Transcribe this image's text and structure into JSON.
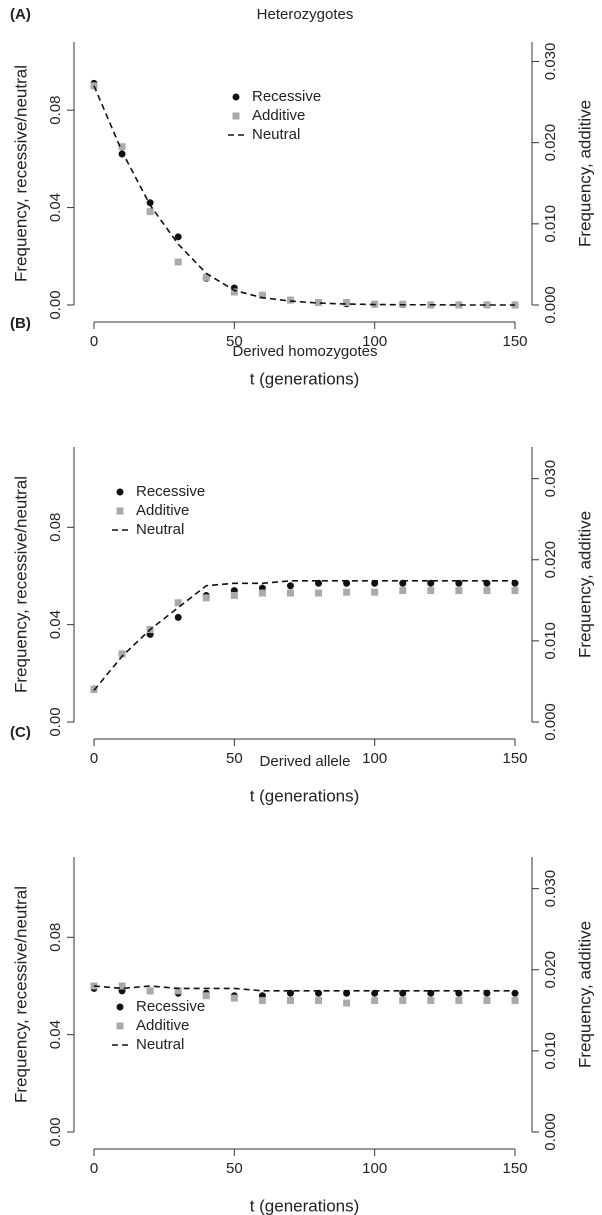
{
  "chart_data": [
    {
      "type": "line",
      "panel": "(A)",
      "title": "Heterozygotes",
      "xlabel": "t (generations)",
      "ylabel": "Frequency, recessive/neutral",
      "y2label": "Frequency, additive",
      "x": [
        0,
        10,
        20,
        30,
        40,
        50,
        60,
        70,
        80,
        90,
        100,
        110,
        120,
        130,
        140,
        150
      ],
      "xlim": [
        0,
        150
      ],
      "xticks": [
        0,
        50,
        100,
        150
      ],
      "ylim": [
        0,
        0.108
      ],
      "yticks": [
        {
          "value": 0,
          "label": "0.00"
        },
        0.04,
        0.08
      ],
      "y2lim": [
        0,
        0.0324
      ],
      "y2ticks": [
        {
          "value": 0,
          "label": "0.000"
        },
        {
          "value": 0.01,
          "label": "0.010"
        },
        {
          "value": 0.02,
          "label": "0.020"
        },
        {
          "value": 0.03,
          "label": "0.030"
        }
      ],
      "legend": "top",
      "series": [
        {
          "name": "Recessive",
          "color": "#111111",
          "marker": "circle",
          "values": [
            0.091,
            0.062,
            0.042,
            0.028,
            0.011,
            0.007,
            0.004,
            0.002,
            0.001,
            0.0005,
            0.0003,
            0.0002,
            0.0001,
            0.0001,
            0.0001,
            0.0001
          ]
        },
        {
          "name": "Additive",
          "color": "#aaaaaa",
          "marker": "square",
          "axis": "y2",
          "values": [
            0.027,
            0.0195,
            0.0115,
            0.0053,
            0.0034,
            0.0016,
            0.0012,
            0.0006,
            0.0003,
            0.0003,
            0.0001,
            0.0001,
            0,
            0,
            0,
            0
          ]
        },
        {
          "name": "Neutral",
          "color": "#111111",
          "linestyle": "dashed",
          "values": [
            0.09,
            0.063,
            0.041,
            0.025,
            0.013,
            0.006,
            0.003,
            0.0016,
            0.0008,
            0.0004,
            0.0002,
            0.0001,
            0.0001,
            0,
            0,
            0
          ]
        }
      ]
    },
    {
      "type": "line",
      "panel": "(B)",
      "title": "Derived homozygotes",
      "xlabel": "t (generations)",
      "ylabel": "Frequency, recessive/neutral",
      "y2label": "Frequency, additive",
      "x": [
        0,
        10,
        20,
        30,
        40,
        50,
        60,
        70,
        80,
        90,
        100,
        110,
        120,
        130,
        140,
        150
      ],
      "xlim": [
        0,
        150
      ],
      "xticks": [
        0,
        50,
        100,
        150
      ],
      "ylim": [
        0,
        0.113
      ],
      "yticks": [
        {
          "value": 0,
          "label": "0.00"
        },
        0.04,
        0.08
      ],
      "y2lim": [
        0,
        0.0339
      ],
      "y2ticks": [
        {
          "value": 0,
          "label": "0.000"
        },
        {
          "value": 0.01,
          "label": "0.010"
        },
        {
          "value": 0.02,
          "label": "0.020"
        },
        {
          "value": 0.03,
          "label": "0.030"
        }
      ],
      "legend": "top-left",
      "series": [
        {
          "name": "Recessive",
          "color": "#111111",
          "marker": "circle",
          "values": [
            0.0135,
            0.028,
            0.036,
            0.043,
            0.052,
            0.054,
            0.055,
            0.056,
            0.057,
            0.057,
            0.057,
            0.057,
            0.057,
            0.057,
            0.057,
            0.057
          ]
        },
        {
          "name": "Additive",
          "color": "#aaaaaa",
          "marker": "square",
          "axis": "y2",
          "values": [
            0.004,
            0.0084,
            0.0114,
            0.0147,
            0.0153,
            0.0156,
            0.0159,
            0.0159,
            0.0159,
            0.016,
            0.016,
            0.0162,
            0.0162,
            0.0162,
            0.0162,
            0.0162
          ]
        },
        {
          "name": "Neutral",
          "color": "#111111",
          "linestyle": "dashed",
          "values": [
            0.013,
            0.027,
            0.038,
            0.047,
            0.056,
            0.057,
            0.057,
            0.058,
            0.058,
            0.058,
            0.058,
            0.058,
            0.058,
            0.058,
            0.058,
            0.058
          ]
        }
      ]
    },
    {
      "type": "line",
      "panel": "(C)",
      "title": "Derived allele",
      "xlabel": "t (generations)",
      "ylabel": "Frequency, recessive/neutral",
      "y2label": "Frequency, additive",
      "x": [
        0,
        10,
        20,
        30,
        40,
        50,
        60,
        70,
        80,
        90,
        100,
        110,
        120,
        130,
        140,
        150
      ],
      "xlim": [
        0,
        150
      ],
      "xticks": [
        0,
        50,
        100,
        150
      ],
      "ylim": [
        0,
        0.113
      ],
      "yticks": [
        {
          "value": 0,
          "label": "0.00"
        },
        0.04,
        0.08
      ],
      "y2lim": [
        0,
        0.0339
      ],
      "y2ticks": [
        {
          "value": 0,
          "label": "0.000"
        },
        {
          "value": 0.01,
          "label": "0.010"
        },
        {
          "value": 0.02,
          "label": "0.020"
        },
        {
          "value": 0.03,
          "label": "0.030"
        }
      ],
      "legend": "bottom-left",
      "series": [
        {
          "name": "Recessive",
          "color": "#111111",
          "marker": "circle",
          "values": [
            0.059,
            0.058,
            0.058,
            0.057,
            0.057,
            0.056,
            0.056,
            0.057,
            0.057,
            0.057,
            0.057,
            0.057,
            0.057,
            0.057,
            0.057,
            0.057
          ]
        },
        {
          "name": "Additive",
          "color": "#aaaaaa",
          "marker": "square",
          "axis": "y2",
          "values": [
            0.018,
            0.018,
            0.0174,
            0.0174,
            0.0168,
            0.0165,
            0.0162,
            0.0162,
            0.0162,
            0.0159,
            0.0162,
            0.0162,
            0.0162,
            0.0162,
            0.0162,
            0.0162
          ]
        },
        {
          "name": "Neutral",
          "color": "#111111",
          "linestyle": "dashed",
          "values": [
            0.06,
            0.059,
            0.06,
            0.059,
            0.059,
            0.059,
            0.058,
            0.058,
            0.058,
            0.058,
            0.058,
            0.058,
            0.058,
            0.058,
            0.058,
            0.058
          ]
        }
      ]
    }
  ]
}
